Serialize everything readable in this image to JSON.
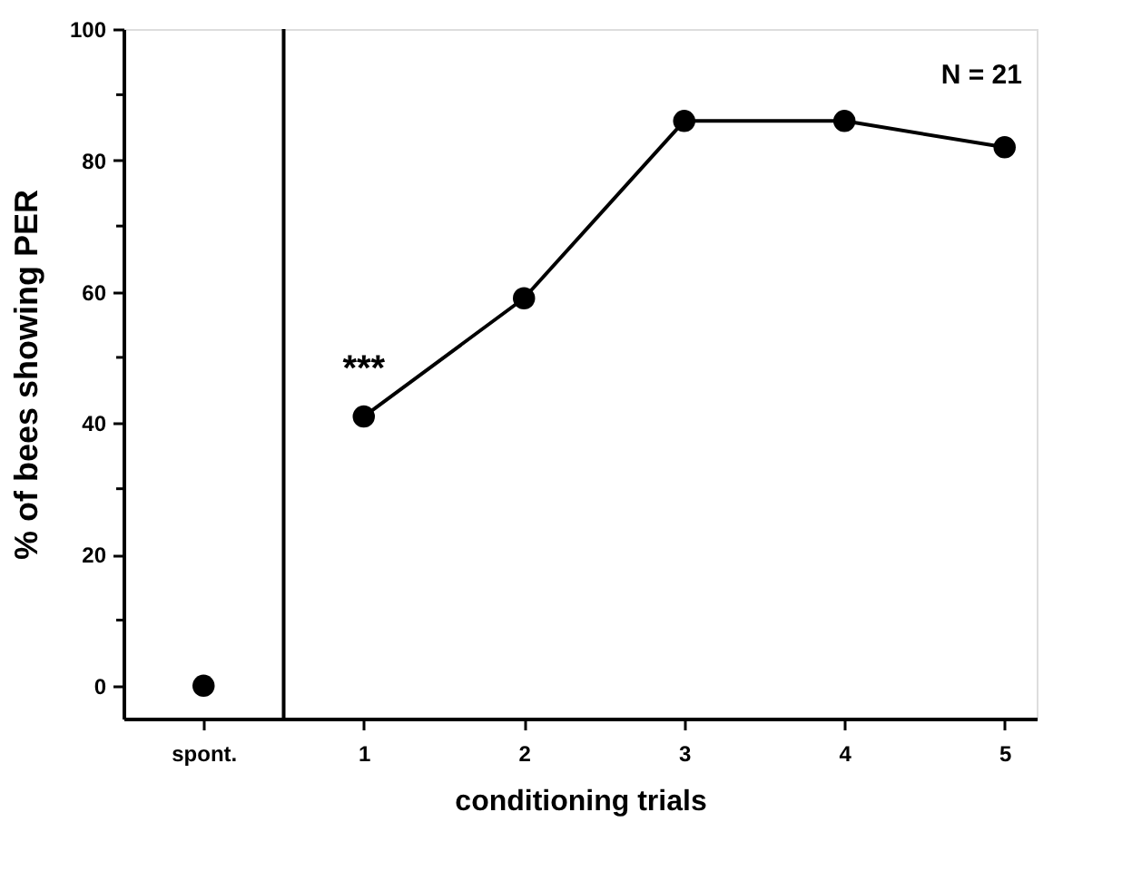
{
  "chart_data": {
    "type": "line",
    "xlabel": "conditioning trials",
    "ylabel": "% of bees showing PER",
    "xlim": [
      -0.5,
      5.2
    ],
    "xticks": [
      {
        "value": 0,
        "label": "spont."
      },
      1,
      2,
      3,
      4,
      5
    ],
    "ylim": [
      -5,
      100
    ],
    "yticks": [
      0,
      {
        "value": 10,
        "label": null
      },
      20,
      {
        "value": 30,
        "label": null
      },
      40,
      {
        "value": 50,
        "label": null
      },
      60,
      {
        "value": 70,
        "label": null
      },
      80,
      {
        "value": 90,
        "label": null
      },
      100
    ],
    "series": [
      {
        "type": "scatter",
        "color": "#000000",
        "x": [
          0
        ],
        "values": [
          0
        ]
      },
      {
        "color": "#000000",
        "x": [
          1,
          2,
          3,
          4,
          5
        ],
        "values": [
          41,
          59,
          86,
          86,
          82
        ]
      }
    ],
    "marker": "circle",
    "line_style": "solid",
    "grid": false,
    "ref_lines": [
      {
        "axis": "x",
        "value": 0.5,
        "color": "#000000"
      }
    ],
    "annotations": [
      {
        "text": "***",
        "x": 1,
        "y": 41
      },
      "N = 21"
    ]
  }
}
